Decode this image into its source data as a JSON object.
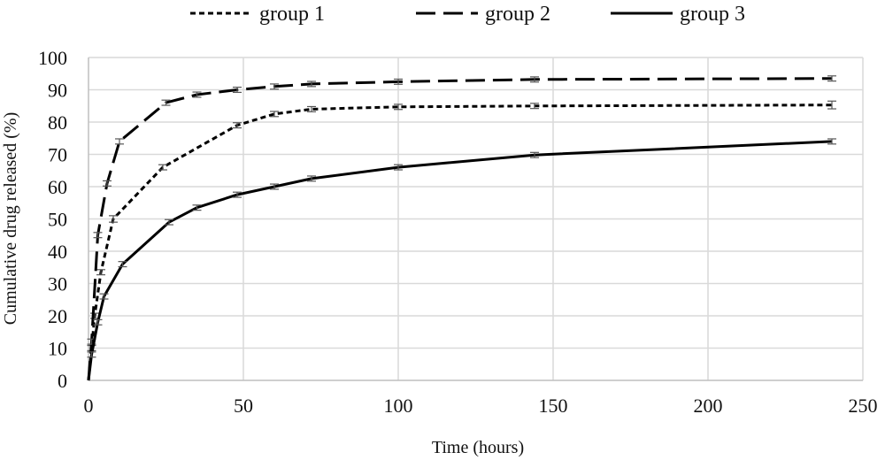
{
  "chart_data": {
    "type": "line",
    "xlabel": "Time (hours)",
    "ylabel": "Cumulative drug released (%)",
    "xlim": [
      0,
      250
    ],
    "ylim": [
      0,
      100
    ],
    "x_ticks": [
      0,
      50,
      100,
      150,
      200,
      250
    ],
    "y_ticks": [
      0,
      10,
      20,
      30,
      40,
      50,
      60,
      70,
      80,
      90,
      100
    ],
    "grid": true,
    "legend_position": "top",
    "error_bars": true,
    "series": [
      {
        "name": "group 1",
        "line_style": "dotted",
        "color": "#000000",
        "x": [
          0,
          1,
          2,
          4,
          8,
          24,
          48,
          60,
          72,
          100,
          144,
          240
        ],
        "y": [
          0,
          10,
          20,
          33.5,
          50,
          66,
          79,
          82.5,
          84,
          84.7,
          85,
          85.3
        ],
        "error": [
          0.5,
          0.8,
          0.8,
          0.8,
          1,
          0.8,
          0.8,
          0.8,
          0.8,
          0.8,
          0.8,
          1.2
        ]
      },
      {
        "name": "group 2",
        "line_style": "long-dash",
        "color": "#000000",
        "x": [
          0,
          1,
          3,
          6,
          10,
          25,
          35,
          48,
          60,
          72,
          100,
          144,
          240
        ],
        "y": [
          0,
          12,
          45,
          61,
          74,
          86,
          88.5,
          90,
          91,
          91.8,
          92.5,
          93.2,
          93.5
        ],
        "error": [
          0.5,
          0.8,
          0.8,
          0.8,
          0.8,
          0.8,
          0.8,
          0.8,
          0.8,
          0.8,
          0.8,
          0.8,
          0.8
        ]
      },
      {
        "name": "group 3",
        "line_style": "solid",
        "color": "#000000",
        "x": [
          0,
          1,
          3,
          5,
          11,
          26,
          35,
          48,
          60,
          72,
          100,
          144,
          240
        ],
        "y": [
          0,
          8,
          18,
          26,
          36,
          49,
          53.5,
          57.5,
          60,
          62.5,
          66,
          69.8,
          74
        ],
        "error": [
          0.5,
          0.8,
          0.8,
          0.8,
          0.8,
          0.8,
          0.8,
          0.8,
          0.8,
          0.8,
          0.8,
          0.8,
          0.8
        ]
      }
    ]
  }
}
